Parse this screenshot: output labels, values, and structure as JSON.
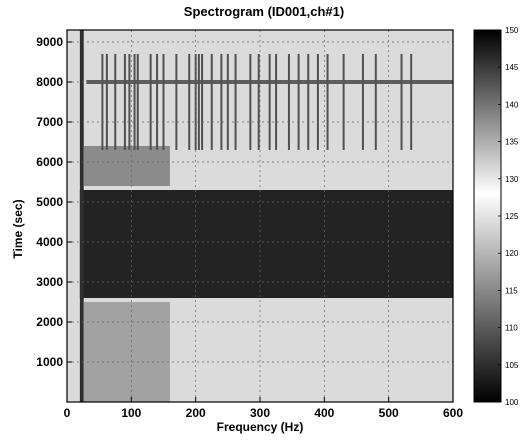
{
  "chart_data": {
    "type": "heatmap",
    "title": "Spectrogram (ID001,ch#1)",
    "xlabel": "Frequency (Hz)",
    "ylabel": "Time (sec)",
    "xlim": [
      0,
      600
    ],
    "ylim": [
      0,
      9300
    ],
    "xticks": [
      0,
      100,
      200,
      300,
      400,
      500,
      600
    ],
    "yticks": [
      1000,
      2000,
      3000,
      4000,
      5000,
      6000,
      7000,
      8000,
      9000
    ],
    "grid": true,
    "colorbar": {
      "min": 100,
      "max": 150,
      "ticks": [
        100,
        105,
        110,
        115,
        120,
        125,
        130,
        135,
        140,
        145,
        150
      ],
      "colors": [
        "#000000",
        "#ffffff",
        "#000000"
      ],
      "stops": [
        100,
        128,
        150
      ]
    },
    "background_level": 124,
    "regions": [
      {
        "label": "strong broadband band",
        "t_start": 2600,
        "t_end": 5300,
        "f_start": 20,
        "f_end": 600,
        "level": 147
      },
      {
        "label": "low-frequency broadband near 20 Hz",
        "t_start": 0,
        "t_end": 9300,
        "f_start": 20,
        "f_end": 26,
        "level": 146
      },
      {
        "label": "low-frequency energy, early period",
        "t_start": 0,
        "t_end": 2500,
        "f_start": 26,
        "f_end": 160,
        "level": 136
      },
      {
        "label": "low-frequency energy near 6000 s",
        "t_start": 5400,
        "t_end": 6400,
        "f_start": 26,
        "f_end": 160,
        "level": 138
      },
      {
        "label": "hum line near 8000 s",
        "t_start": 7950,
        "t_end": 8050,
        "f_start": 30,
        "f_end": 600,
        "level": 142
      }
    ],
    "vertical_lines": {
      "t_start": 6300,
      "t_end": 8700,
      "level": 143,
      "freqs": [
        55,
        62,
        75,
        90,
        97,
        105,
        110,
        130,
        140,
        150,
        170,
        190,
        200,
        205,
        210,
        225,
        240,
        250,
        262,
        285,
        298,
        315,
        325,
        345,
        360,
        375,
        390,
        405,
        430,
        460,
        480,
        520,
        535
      ]
    }
  }
}
